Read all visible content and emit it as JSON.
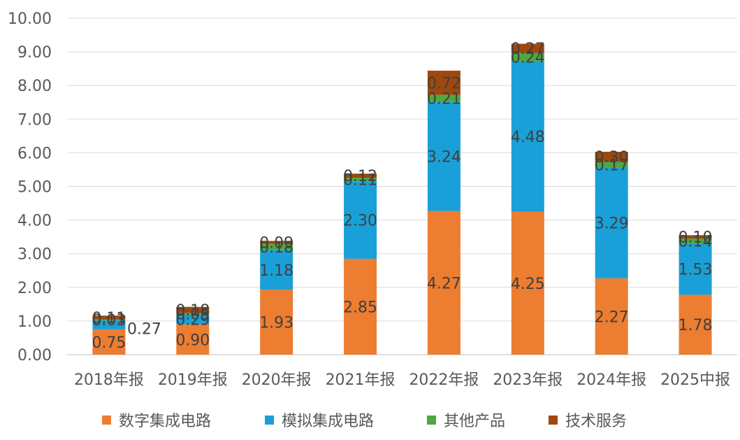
{
  "chart_data": {
    "type": "bar",
    "stacked": true,
    "categories": [
      "2018年报",
      "2019年报",
      "2020年报",
      "2021年报",
      "2022年报",
      "2023年报",
      "2024年报",
      "2025中报"
    ],
    "series": [
      {
        "name": "数字集成电路",
        "color": "#ED7D31",
        "values": [
          0.75,
          0.9,
          1.93,
          2.85,
          4.27,
          4.25,
          2.27,
          1.78
        ]
      },
      {
        "name": "模拟集成电路",
        "color": "#1AA0D8",
        "values": [
          0.27,
          0.29,
          1.18,
          2.3,
          3.24,
          4.48,
          3.29,
          1.53
        ]
      },
      {
        "name": "其他产品",
        "color": "#4FA83D",
        "values": [
          0.03,
          0.05,
          0.18,
          0.11,
          0.21,
          0.24,
          0.17,
          0.14
        ]
      },
      {
        "name": "技术服务",
        "color": "#9E480E",
        "values": [
          0.11,
          0.18,
          0.09,
          0.12,
          0.72,
          0.27,
          0.3,
          0.1
        ]
      }
    ],
    "ylim": [
      0,
      10
    ],
    "yticks": [
      "0.00",
      "1.00",
      "2.00",
      "3.00",
      "4.00",
      "5.00",
      "6.00",
      "7.00",
      "8.00",
      "9.00",
      "10.00"
    ],
    "grid": true,
    "legend_position": "bottom",
    "title": "",
    "xlabel": "",
    "ylabel": ""
  }
}
